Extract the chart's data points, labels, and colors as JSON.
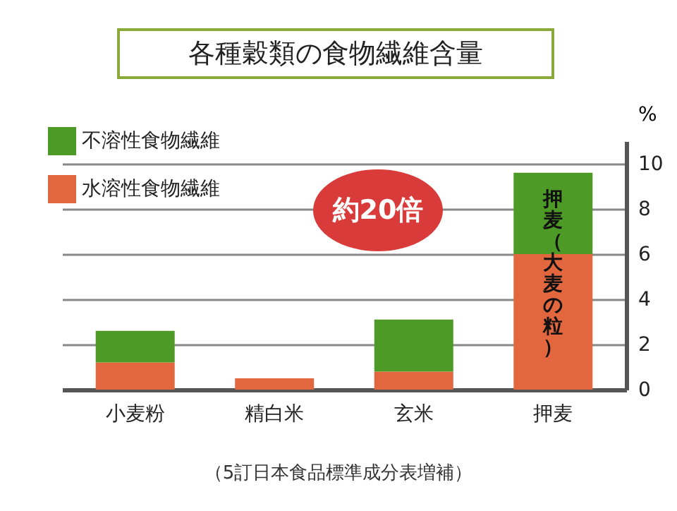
{
  "chart_data": {
    "type": "bar",
    "title": "各種穀類の食物繊維含量",
    "ylabel": "%",
    "categories": [
      "小麦粉",
      "精白米",
      "玄米",
      "押麦"
    ],
    "stacked": true,
    "series": [
      {
        "name": "水溶性食物繊維",
        "color": "#e2673f",
        "values": [
          1.2,
          0.5,
          0.8,
          6.0
        ]
      },
      {
        "name": "不溶性食物繊維",
        "color": "#4e9a26",
        "values": [
          1.4,
          0,
          2.3,
          3.6
        ]
      }
    ],
    "ylim": [
      0,
      11
    ],
    "yticks": [
      0,
      2,
      4,
      6,
      8,
      10
    ],
    "grid": "y",
    "legend": "top left",
    "annotations": [
      "約20倍",
      "押麦（大麦の粒）",
      "（5訂日本食品標準成分表増補）"
    ]
  }
}
